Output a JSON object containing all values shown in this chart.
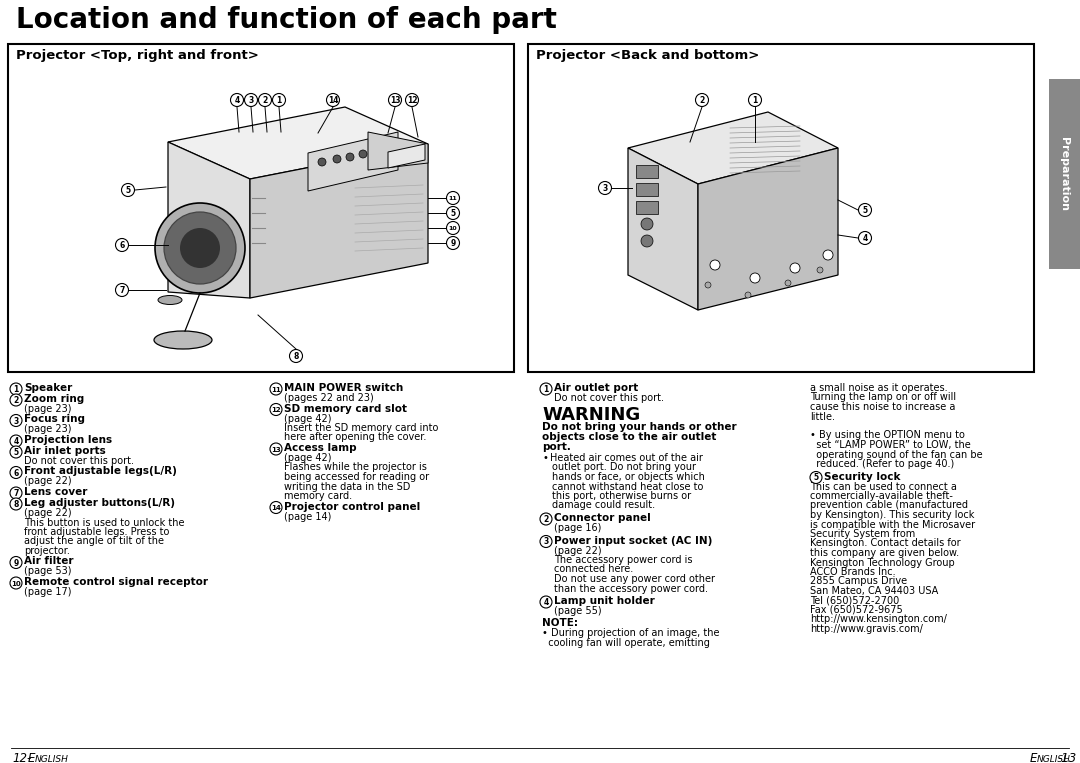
{
  "title": "Location and function of each part",
  "bg_color": "#ffffff",
  "left_box_title": "Projector <Top, right and front>",
  "right_box_title": "Projector <Back and bottom>",
  "tab_text": "Preparation",
  "footer_left": "12-",
  "footer_left_italic": "English",
  "footer_right_normal": "English",
  "footer_right_suffix": "-13",
  "left_items": [
    [
      "1",
      "Speaker",
      []
    ],
    [
      "2",
      "Zoom ring",
      [
        "(page 23)"
      ]
    ],
    [
      "3",
      "Focus ring",
      [
        "(page 23)"
      ]
    ],
    [
      "4",
      "Projection lens",
      []
    ],
    [
      "5",
      "Air inlet ports",
      [
        "Do not cover this port."
      ]
    ],
    [
      "6",
      "Front adjustable legs(L/R)",
      [
        "(page 22)"
      ]
    ],
    [
      "7",
      "Lens cover",
      []
    ],
    [
      "8",
      "Leg adjuster buttons(L/R)",
      [
        "(page 22)",
        "This button is used to unlock the",
        "front adjustable legs. Press to",
        "adjust the angle of tilt of the",
        "projector."
      ]
    ],
    [
      "9",
      "Air filter",
      [
        "(page 53)"
      ]
    ],
    [
      "10",
      "Remote control signal receptor",
      [
        "(page 17)"
      ]
    ]
  ],
  "right_items_left": [
    [
      "11",
      "MAIN POWER switch",
      [
        "(pages 22 and 23)"
      ]
    ],
    [
      "12",
      "SD memory card slot",
      [
        "(page 42)",
        "Insert the SD memory card into",
        "here after opening the cover."
      ]
    ],
    [
      "13",
      "Access lamp",
      [
        "(page 42)",
        "Flashes while the projector is",
        "being accessed for reading or",
        "writing the data in the SD",
        "memory card."
      ]
    ],
    [
      "14",
      "Projector control panel",
      [
        "(page 14)"
      ]
    ]
  ],
  "back_items_left": [
    [
      "1",
      "Air outlet port",
      [
        "Do not cover this port."
      ]
    ],
    [
      "2",
      "Connector panel",
      [
        "(page 16)"
      ]
    ],
    [
      "3",
      "Power input socket (AC IN)",
      [
        "(page 22)",
        "The accessory power cord is",
        "connected here.",
        "Do not use any power cord other",
        "than the accessory power cord."
      ]
    ],
    [
      "4",
      "Lamp unit holder",
      [
        "(page 55)"
      ]
    ]
  ],
  "warning_title": "WARNING",
  "warning_bold_lines": [
    "Do not bring your hands or other",
    "objects close to the air outlet",
    "port."
  ],
  "warning_bullet": [
    "Heated air comes out of the air",
    "outlet port. Do not bring your",
    "hands or face, or objects which",
    "cannot withstand heat close to",
    "this port, otherwise burns or",
    "damage could result."
  ],
  "note_title": "NOTE:",
  "note_bullet": [
    "• During projection of an image, the",
    "  cooling fan will operate, emitting"
  ],
  "far_right_cont": [
    "a small noise as it operates.",
    "Turning the lamp on or off will",
    "cause this noise to increase a",
    "little.",
    "",
    "• By using the OPTION menu to",
    "  set “LAMP POWER” to LOW, the",
    "  operating sound of the fan can be",
    "  reduced. (Refer to page 40.)"
  ],
  "security_num": "5",
  "security_bold": "Security lock",
  "security_lines": [
    "This can be used to connect a",
    "commercially-available theft-",
    "prevention cable (manufactured",
    "by Kensington). This security lock",
    "is compatible with the Microsaver",
    "Security System from",
    "Kensington. Contact details for",
    "this company are given below.",
    "Kensington Technology Group",
    "ACCO Brands Inc.",
    "2855 Campus Drive",
    "San Mateo, CA 94403 USA",
    "Tel (650)572-2700",
    "Fax (650)572-9675",
    "http://www.kensington.com/",
    "http://www.gravis.com/"
  ]
}
